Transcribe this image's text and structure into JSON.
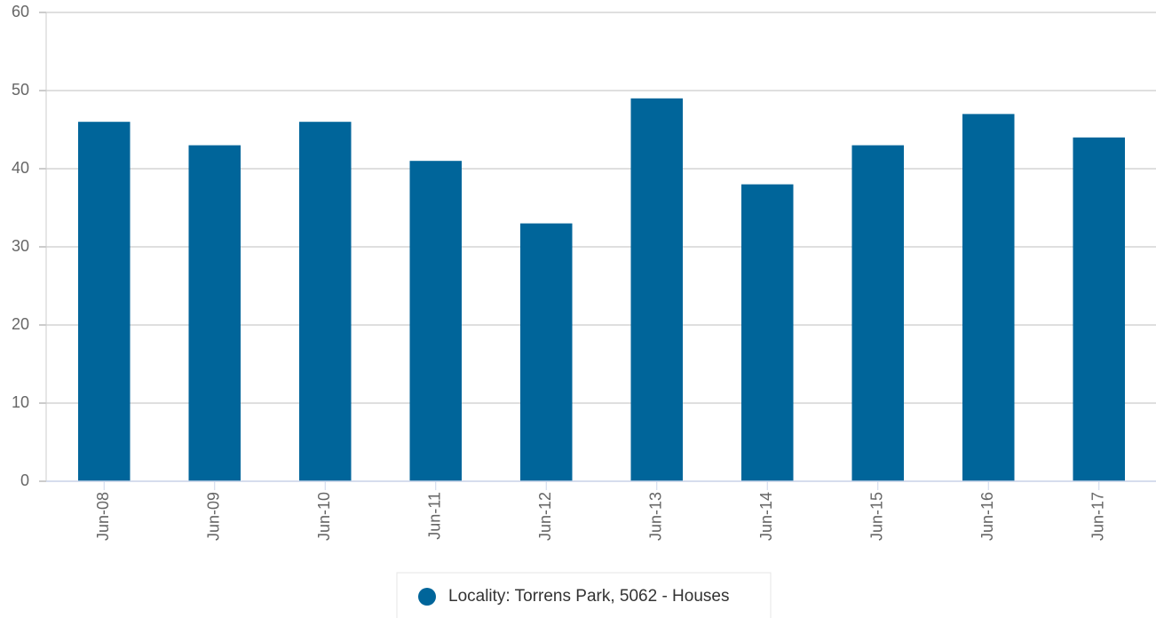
{
  "chart_data": {
    "type": "bar",
    "categories": [
      "Jun-08",
      "Jun-09",
      "Jun-10",
      "Jun-11",
      "Jun-12",
      "Jun-13",
      "Jun-14",
      "Jun-15",
      "Jun-16",
      "Jun-17"
    ],
    "series": [
      {
        "name": "Locality: Torrens Park, 5062 - Houses",
        "color": "#00659a",
        "values": [
          46,
          43,
          46,
          41,
          33,
          49,
          38,
          43,
          47,
          44
        ]
      }
    ],
    "ylim": [
      0,
      60
    ],
    "yticks": [
      0,
      10,
      20,
      30,
      40,
      50,
      60
    ],
    "grid": true
  }
}
